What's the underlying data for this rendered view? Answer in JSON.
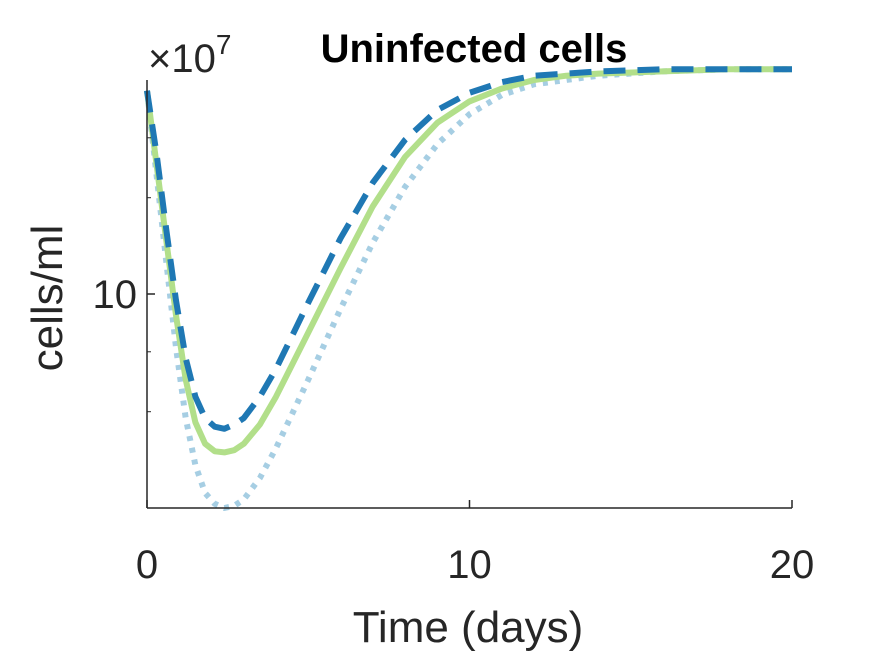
{
  "chart_data": {
    "type": "line",
    "title": "Uninfected cells",
    "xlabel": "Time (days)",
    "ylabel": "cells/ml",
    "y_exponent_label": "×10",
    "y_exponent_power": "7",
    "xlim": [
      0,
      20
    ],
    "ylim": [
      9,
      11
    ],
    "y_scale": "log",
    "xticks": [
      0,
      10,
      20
    ],
    "xtick_labels": [
      "0",
      "10",
      "20"
    ],
    "yticks": [
      10
    ],
    "ytick_labels": [
      "10"
    ],
    "grid": false,
    "legend": "none",
    "series": [
      {
        "color": "#a6cee3",
        "style": "dotted",
        "x": [
          0,
          0.3,
          0.6,
          0.9,
          1.2,
          1.5,
          1.8,
          2.1,
          2.4,
          2.7,
          3,
          3.5,
          4,
          5,
          6,
          7,
          8,
          9,
          10,
          11,
          12,
          13,
          14,
          16,
          18,
          20
        ],
        "y": [
          10.95,
          10.55,
          10.15,
          9.75,
          9.42,
          9.2,
          9.07,
          9.02,
          9.0,
          9.01,
          9.04,
          9.14,
          9.28,
          9.6,
          9.93,
          10.24,
          10.5,
          10.7,
          10.84,
          10.93,
          10.98,
          11.0,
          11.02,
          11.04,
          11.05,
          11.05
        ]
      },
      {
        "color": "#b2df8a",
        "style": "solid",
        "x": [
          0,
          0.3,
          0.6,
          0.9,
          1.2,
          1.5,
          1.8,
          2.1,
          2.4,
          2.7,
          3,
          3.5,
          4,
          5,
          6,
          7,
          8,
          9,
          10,
          11,
          12,
          13,
          14,
          16,
          18,
          20
        ],
        "y": [
          10.95,
          10.6,
          10.25,
          9.9,
          9.6,
          9.4,
          9.3,
          9.265,
          9.26,
          9.27,
          9.3,
          9.39,
          9.52,
          9.82,
          10.12,
          10.41,
          10.64,
          10.8,
          10.9,
          10.96,
          11.0,
          11.02,
          11.03,
          11.04,
          11.05,
          11.05
        ]
      },
      {
        "color": "#1f78b4",
        "style": "dashed",
        "x": [
          0,
          0.3,
          0.6,
          0.9,
          1.2,
          1.5,
          1.8,
          2.1,
          2.4,
          2.7,
          3,
          3.5,
          4,
          5,
          6,
          7,
          8,
          9,
          10,
          11,
          12,
          13,
          14,
          16,
          18,
          20
        ],
        "y": [
          10.95,
          10.65,
          10.3,
          9.97,
          9.7,
          9.52,
          9.42,
          9.38,
          9.37,
          9.39,
          9.42,
          9.52,
          9.65,
          9.96,
          10.26,
          10.52,
          10.72,
          10.86,
          10.94,
          10.99,
          11.02,
          11.03,
          11.04,
          11.05,
          11.05,
          11.05
        ]
      }
    ]
  }
}
